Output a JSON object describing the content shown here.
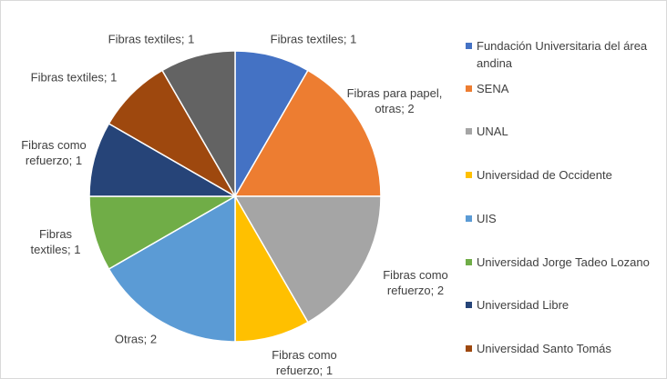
{
  "chart_data": {
    "type": "pie",
    "categories": [
      "Fundación Universitaria del área andina",
      "SENA",
      "UNAL",
      "Universidad de Occidente",
      "UIS",
      "Universidad Jorge Tadeo Lozano",
      "Universidad Libre",
      "Universidad Santo Tomás",
      null
    ],
    "values": [
      1,
      2,
      2,
      1,
      2,
      1,
      1,
      1,
      1
    ],
    "value_labels": [
      "Fibras textiles; 1",
      "Fibras para papel, otras; 2",
      "Fibras como refuerzo; 2",
      "Fibras como refuerzo; 1",
      "Otras; 2",
      "Fibras textiles; 1",
      "Fibras como refuerzo; 1",
      "Fibras textiles; 1",
      "Fibras textiles; 1"
    ],
    "colors": [
      "#4472c4",
      "#ed7d31",
      "#a5a5a5",
      "#ffc000",
      "#5b9bd5",
      "#70ad47",
      "#264478",
      "#9e480e",
      "#636363"
    ],
    "legend": "right"
  }
}
